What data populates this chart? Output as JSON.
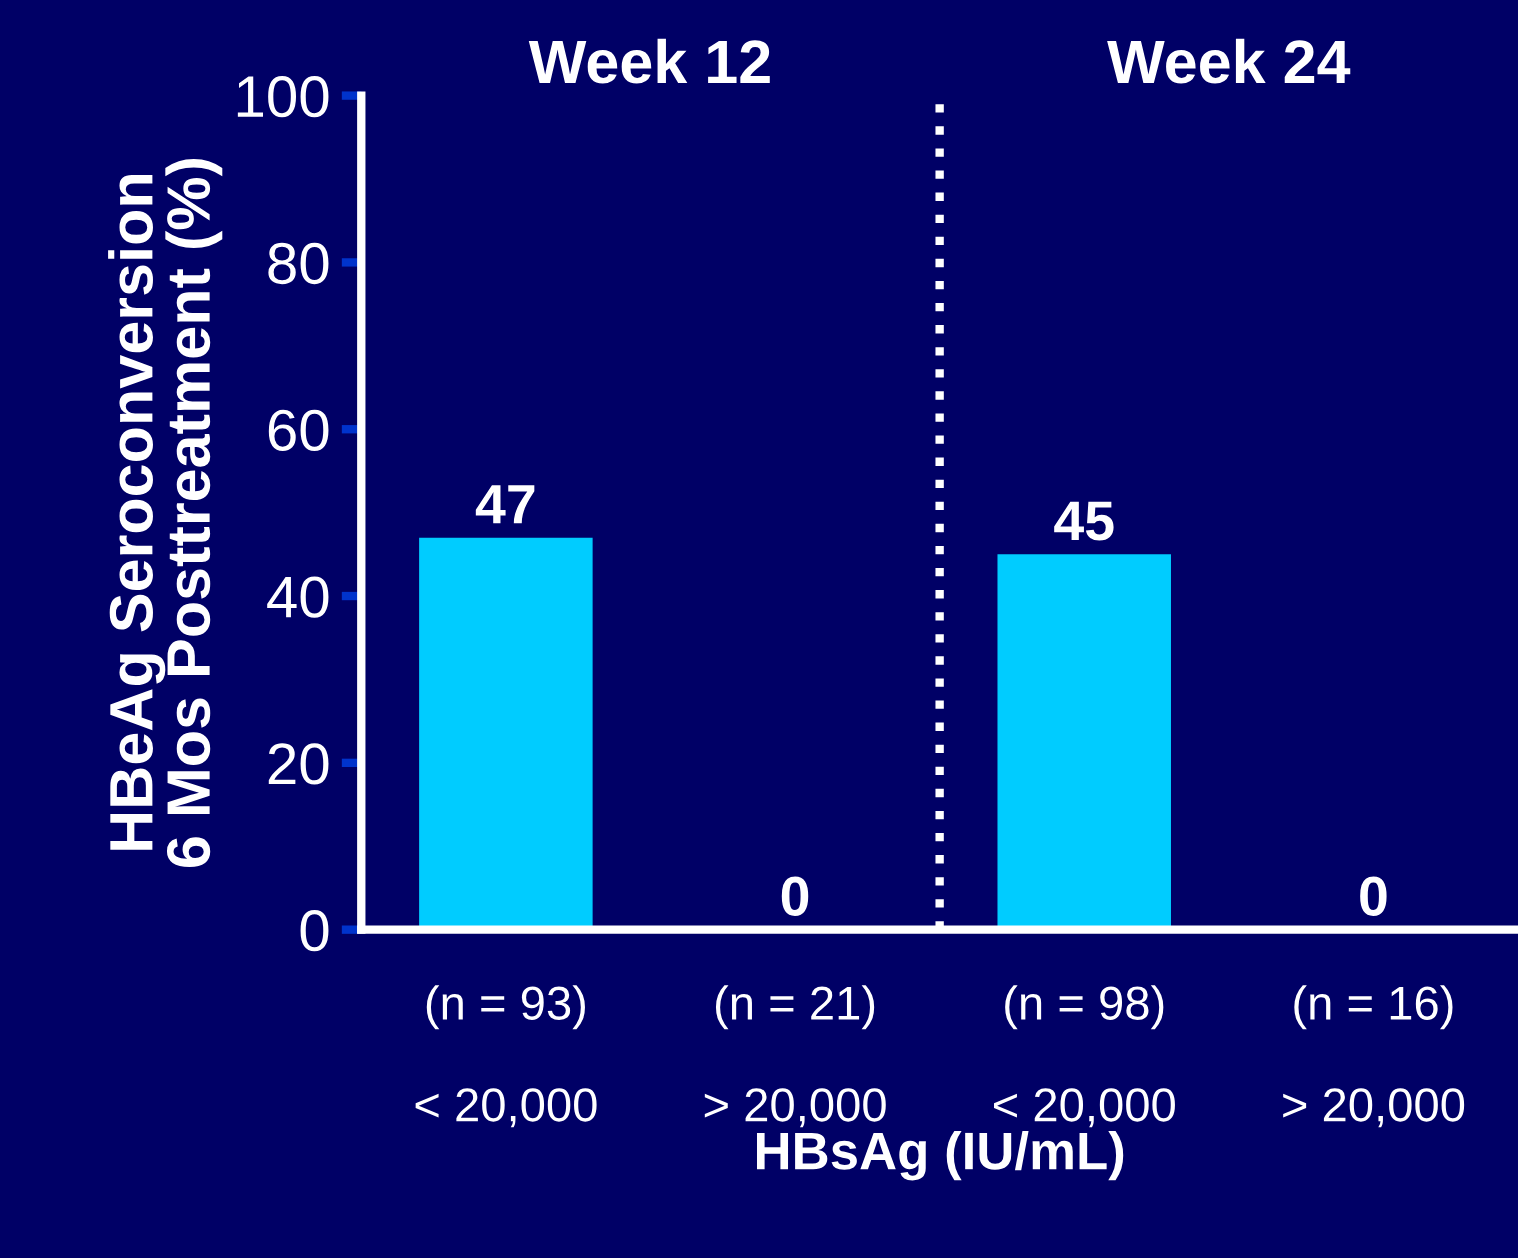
{
  "chart_data": {
    "type": "bar",
    "categories": [
      "(n = 93)\n\n< 20,000",
      "(n = 21)\n\n> 20,000",
      "(n = 98)\n\n< 20,000",
      "(n = 16)\n\n> 20,000"
    ],
    "values": [
      47,
      0,
      45,
      0
    ],
    "color": "#00ccff",
    "data_labels": true,
    "xlabel": "HBsAg (IU/mL)",
    "ylabel": "HBeAg Seroconversion\n6 Mos Posttreatment (%)",
    "ylim": [
      0,
      100
    ],
    "yticks": [
      0,
      20,
      40,
      60,
      80,
      100
    ],
    "annotations": [
      "Week 12",
      "Week 24"
    ],
    "grid": false
  }
}
